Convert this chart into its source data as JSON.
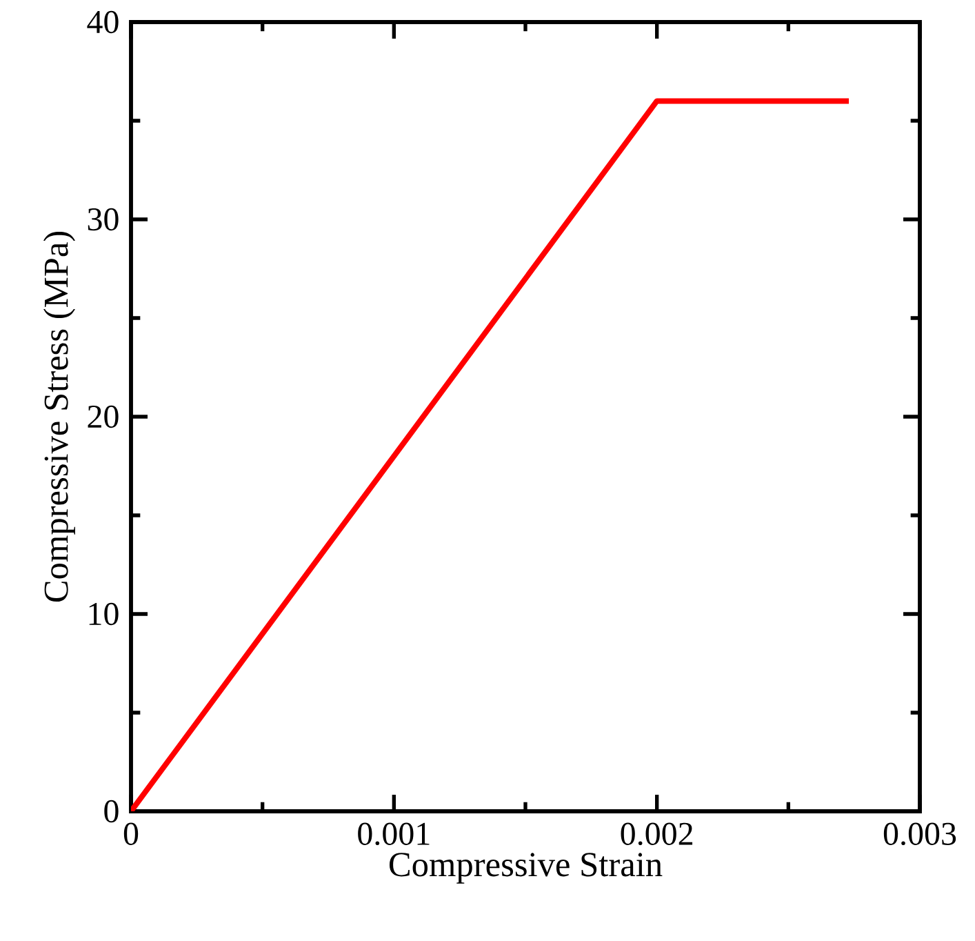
{
  "chart_data": {
    "type": "line",
    "xlabel": "Compressive Strain",
    "ylabel": "Compressive Stress (MPa)",
    "x": [
      0,
      0.002,
      0.00273
    ],
    "values": [
      0,
      36,
      36
    ],
    "color": "#ff0000",
    "xlim": [
      0,
      0.003
    ],
    "ylim": [
      0,
      40
    ],
    "xticks": [
      0,
      0.001,
      0.002,
      0.003
    ],
    "yticks": [
      0,
      10,
      20,
      30,
      40
    ]
  }
}
